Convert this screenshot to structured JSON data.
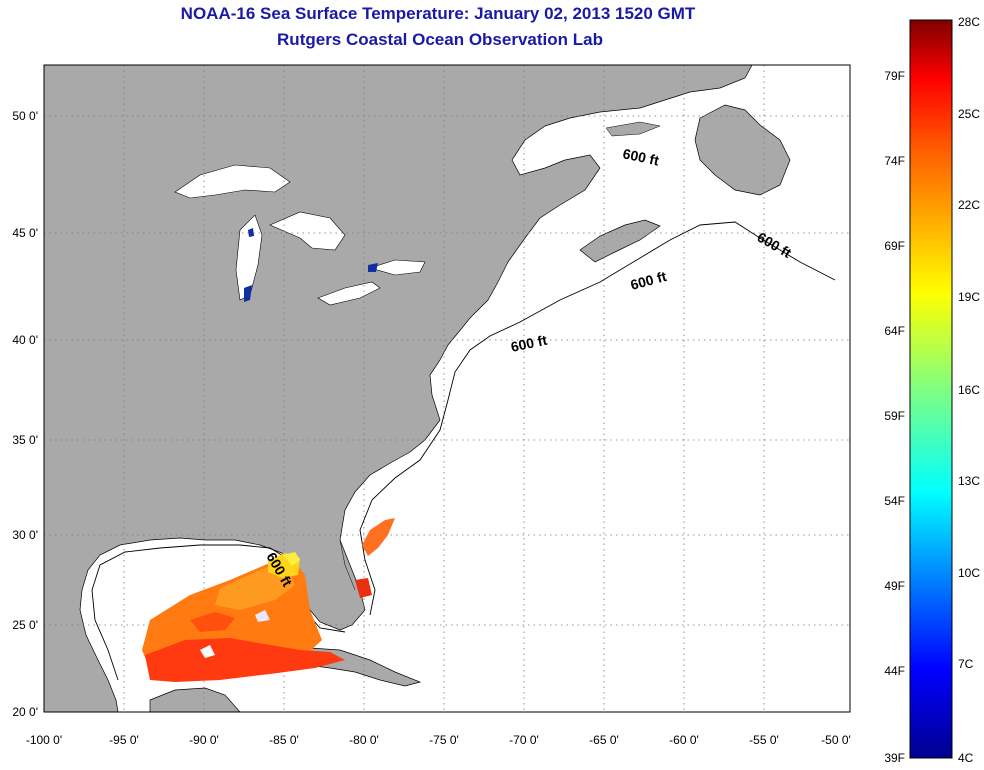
{
  "title_line1": "NOAA-16 Sea Surface Temperature:  January 02, 2013 1520 GMT",
  "title_line2": "Rutgers Coastal Ocean Observation Lab",
  "lon_ticks": [
    "-100 0'",
    "-95 0'",
    "-90 0'",
    "-85 0'",
    "-80 0'",
    "-75 0'",
    "-70 0'",
    "-65 0'",
    "-60 0'",
    "-55 0'",
    "-50 0'"
  ],
  "lat_ticks": [
    "20 0'",
    "25 0'",
    "30 0'",
    "35 0'",
    "40 0'",
    "45 0'",
    "50 0'"
  ],
  "contour_label": "600 ft",
  "colorbar": {
    "celsius_labels": [
      "28C",
      "25C",
      "22C",
      "19C",
      "16C",
      "13C",
      "10C",
      "7C",
      "4C"
    ],
    "fahrenheit_labels": [
      "79F",
      "74F",
      "69F",
      "64F",
      "59F",
      "54F",
      "49F",
      "44F",
      "39F"
    ],
    "colors": [
      "#7f0000",
      "#ff0000",
      "#ff8000",
      "#ffff00",
      "#80ff80",
      "#00ffff",
      "#0080ff",
      "#0000ff",
      "#00008f"
    ]
  },
  "colors": {
    "land": "#a9a9a9",
    "water": "#ffffff",
    "title": "#1a1aa6"
  }
}
